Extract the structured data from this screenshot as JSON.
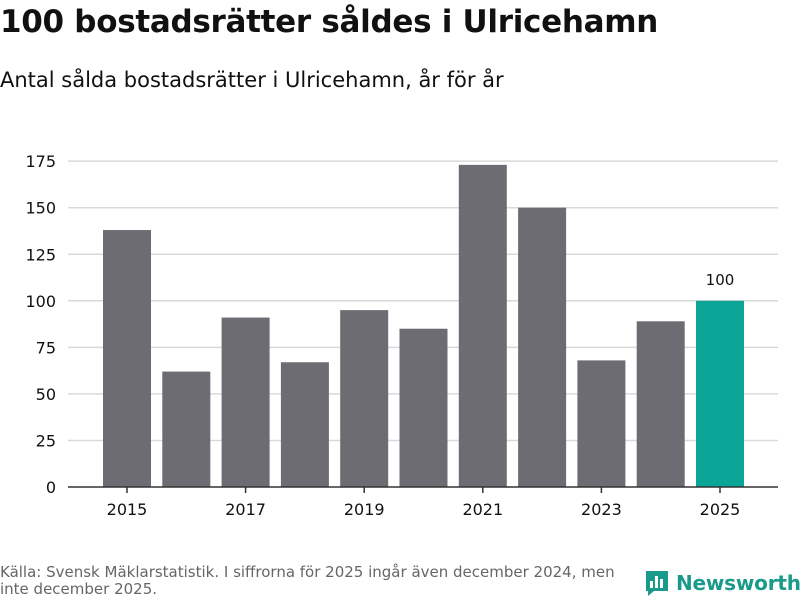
{
  "title": "100 bostadsrätter såldes i Ulricehamn",
  "subtitle": "Antal sålda bostadsrätter i Ulricehamn, år för år",
  "source": "Källa: Svensk Mäklarstatistik. I siffrorna för 2025 ingår även december 2024, men inte december 2025.",
  "brand": {
    "name": "Newsworthy",
    "icon": "newsworthy-logo-icon"
  },
  "colors": {
    "bar": "#6d6c72",
    "highlight": "#0aa596",
    "grid": "#d9d9d9",
    "axis": "#333333",
    "brand": "#1a9a8a"
  },
  "chart_data": {
    "type": "bar",
    "categories": [
      "2015",
      "2016",
      "2017",
      "2018",
      "2019",
      "2020",
      "2021",
      "2022",
      "2023",
      "2024",
      "2025"
    ],
    "values": [
      138,
      62,
      91,
      67,
      95,
      85,
      173,
      150,
      68,
      89,
      100
    ],
    "x_tick_labels": [
      "2015",
      "2017",
      "2019",
      "2021",
      "2023",
      "2025"
    ],
    "y_ticks": [
      0,
      25,
      50,
      75,
      100,
      125,
      150,
      175
    ],
    "ylim": [
      0,
      180
    ],
    "highlight_category": "2025",
    "data_labels": [
      {
        "category": "2025",
        "text": "100"
      }
    ],
    "xlabel": "",
    "ylabel": "",
    "grid": true
  }
}
